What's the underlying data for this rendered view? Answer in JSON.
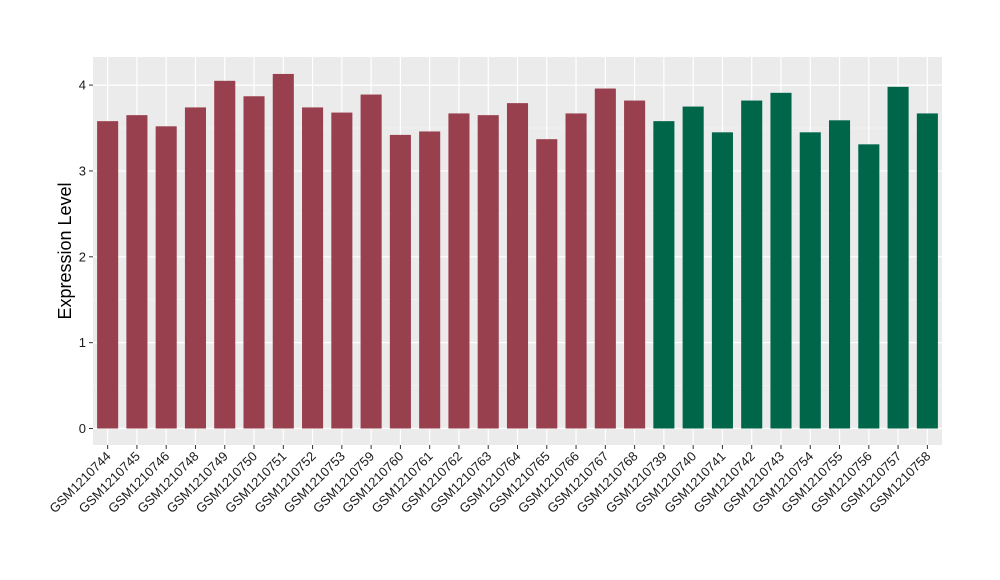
{
  "chart_data": {
    "type": "bar",
    "title": "",
    "xlabel": "",
    "ylabel": "Expression Level",
    "ylim": [
      0,
      4.3
    ],
    "yticks": [
      0,
      1,
      2,
      3,
      4
    ],
    "grid": true,
    "legend": "none",
    "panel_background": "#ebebeb",
    "categories": [
      "GSM1210744",
      "GSM1210745",
      "GSM1210746",
      "GSM1210748",
      "GSM1210749",
      "GSM1210750",
      "GSM1210751",
      "GSM1210752",
      "GSM1210753",
      "GSM1210759",
      "GSM1210760",
      "GSM1210761",
      "GSM1210762",
      "GSM1210763",
      "GSM1210764",
      "GSM1210765",
      "GSM1210766",
      "GSM1210767",
      "GSM1210768",
      "GSM1210739",
      "GSM1210740",
      "GSM1210741",
      "GSM1210742",
      "GSM1210743",
      "GSM1210754",
      "GSM1210755",
      "GSM1210756",
      "GSM1210757",
      "GSM1210758"
    ],
    "values": [
      3.58,
      3.65,
      3.52,
      3.74,
      4.05,
      3.87,
      4.13,
      3.74,
      3.68,
      3.89,
      3.42,
      3.46,
      3.67,
      3.65,
      3.79,
      3.37,
      3.67,
      3.96,
      3.82,
      3.58,
      3.75,
      3.45,
      3.82,
      3.91,
      3.45,
      3.59,
      3.31,
      3.98,
      3.67
    ],
    "groups": [
      0,
      0,
      0,
      0,
      0,
      0,
      0,
      0,
      0,
      0,
      0,
      0,
      0,
      0,
      0,
      0,
      0,
      0,
      0,
      1,
      1,
      1,
      1,
      1,
      1,
      1,
      1,
      1,
      1
    ],
    "group_colors": [
      "#99404f",
      "#00664a"
    ]
  }
}
